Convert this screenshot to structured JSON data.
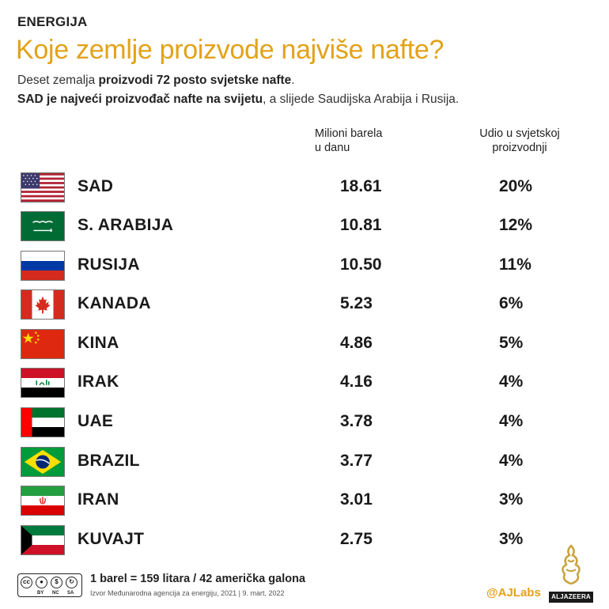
{
  "header": {
    "category": "ENERGIJA",
    "title": "Koje zemlje proizvode najviše nafte?",
    "subtitle1_pre": "Deset zemalja ",
    "subtitle1_bold": "proizvodi 72 posto svjetske nafte",
    "subtitle1_post": ".",
    "subtitle2_bold": "SAD je najveći proizvođač nafte na svijetu",
    "subtitle2_post": ", a slijede Saudijska Arabija i Rusija."
  },
  "columns": {
    "barrels_line1": "Milioni barela",
    "barrels_line2": "u danu",
    "share_line1": "Udio u svjetskoj",
    "share_line2": "proizvodnji"
  },
  "rows": [
    {
      "country": "SAD",
      "flag": "usa-flag-icon",
      "barrels": "18.61",
      "share": "20%"
    },
    {
      "country": "S. ARABIJA",
      "flag": "saudi-arabia-flag-icon",
      "barrels": "10.81",
      "share": "12%"
    },
    {
      "country": "RUSIJA",
      "flag": "russia-flag-icon",
      "barrels": "10.50",
      "share": "11%"
    },
    {
      "country": "KANADA",
      "flag": "canada-flag-icon",
      "barrels": "5.23",
      "share": "6%"
    },
    {
      "country": "KINA",
      "flag": "china-flag-icon",
      "barrels": "4.86",
      "share": "5%"
    },
    {
      "country": "IRAK",
      "flag": "iraq-flag-icon",
      "barrels": "4.16",
      "share": "4%"
    },
    {
      "country": "UAE",
      "flag": "uae-flag-icon",
      "barrels": "3.78",
      "share": "4%"
    },
    {
      "country": "BRAZIL",
      "flag": "brazil-flag-icon",
      "barrels": "3.77",
      "share": "4%"
    },
    {
      "country": "IRAN",
      "flag": "iran-flag-icon",
      "barrels": "3.01",
      "share": "3%"
    },
    {
      "country": "KUVAJT",
      "flag": "kuwait-flag-icon",
      "barrels": "2.75",
      "share": "3%"
    }
  ],
  "footer": {
    "cc_labels": [
      "BY",
      "NC",
      "SA"
    ],
    "cc_text": "cc",
    "note": "1 barel = 159 litara / 42 američka galona",
    "source": "Izvor Međunarodna agencija za energiju, 2021  |  9. mart, 2022",
    "handle": "@AJLabs",
    "logo_text": "ALJAZEERA"
  },
  "colors": {
    "accent": "#e3a21a",
    "text": "#1a1a1a"
  }
}
